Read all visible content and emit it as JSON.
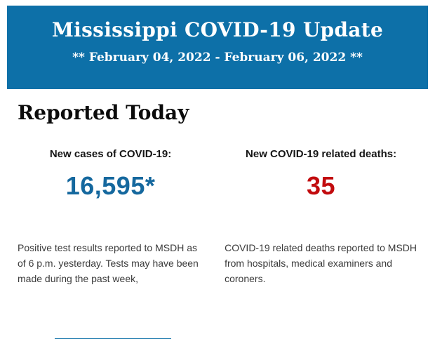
{
  "colors": {
    "band_bg": "#0d70a8",
    "cases_value": "#15689e",
    "deaths_value": "#c20b0e"
  },
  "header": {
    "title": "Mississippi COVID-19 Update",
    "date_range": "** February 04, 2022 - February 06, 2022 **"
  },
  "report": {
    "section_title": "Reported Today",
    "stats": [
      {
        "label": "New cases of COVID-19:",
        "value": "16,595*",
        "note": "Positive test results reported to MSDH as of 6 p.m. yesterday. Tests may have been made during the past week,"
      },
      {
        "label": "New COVID-19 related deaths:",
        "value": "35",
        "note": "COVID-19 related deaths reported to MSDH from hospitals, medical examiners and coroners."
      }
    ]
  }
}
